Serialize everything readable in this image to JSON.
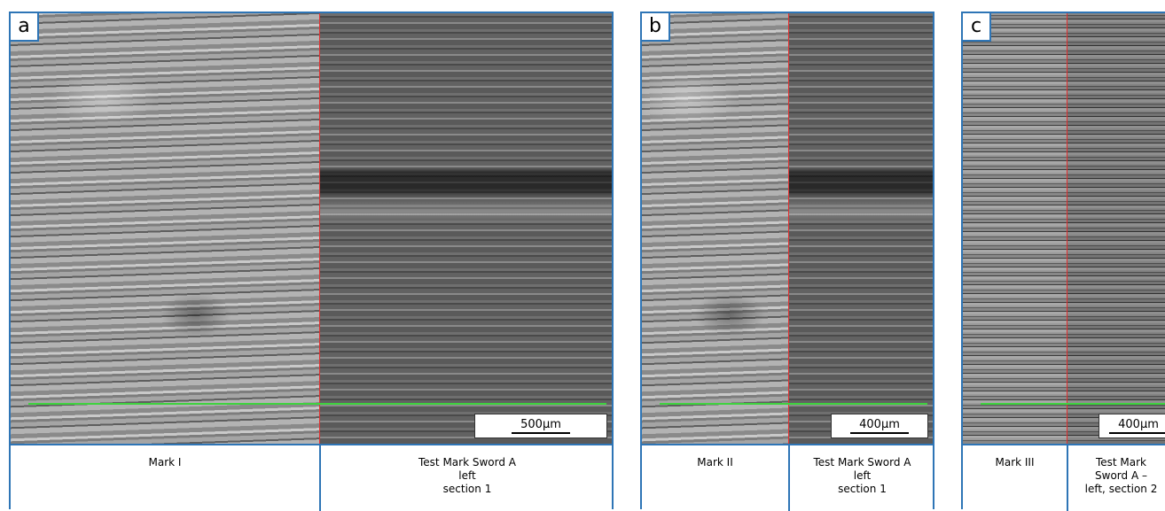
{
  "panels": [
    {
      "label": "a",
      "left_caption": [
        "Mark I"
      ],
      "right_caption": [
        "Test Mark  Sword A",
        "left",
        "section 1"
      ],
      "scale_bar": "500µm"
    },
    {
      "label": "b",
      "left_caption": [
        "Mark II"
      ],
      "right_caption": [
        "Test Mark  Sword A",
        "left",
        "section 1"
      ],
      "scale_bar": "400µm"
    },
    {
      "label": "c",
      "left_caption": [
        "Mark III"
      ],
      "right_caption": [
        "Test Mark",
        "Sword A –",
        "left, section 2"
      ],
      "scale_bar": "400µm"
    }
  ]
}
